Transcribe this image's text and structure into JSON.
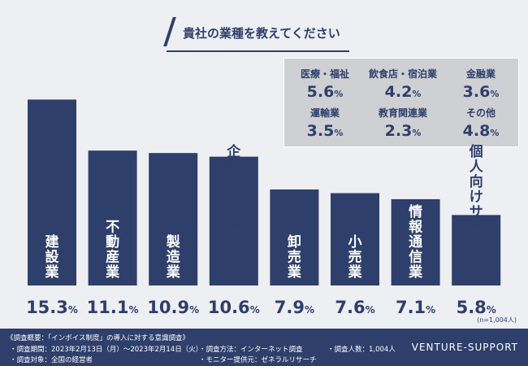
{
  "title": "貴社の業種を教えてください",
  "chart_data": {
    "type": "bar",
    "categories": [
      "建設業",
      "不動産業",
      "製造業",
      "企業向けサービス業",
      "卸売業",
      "小売業",
      "情報通信業",
      "個人向けサービス業"
    ],
    "values": [
      15.3,
      11.1,
      10.9,
      10.6,
      7.9,
      7.6,
      7.1,
      5.8
    ],
    "unit": "%",
    "ylim": [
      0,
      16.8
    ],
    "bar_color": "#2e3f6b",
    "label_color": "#ffffff",
    "outside_label_color": "#2e3f6b",
    "note": "(n=1,004人)"
  },
  "others": [
    {
      "label": "医療・福祉",
      "value": "5.6",
      "unit": "%"
    },
    {
      "label": "飲食店・宿泊業",
      "value": "4.2",
      "unit": "%"
    },
    {
      "label": "金融業",
      "value": "3.6",
      "unit": "%"
    },
    {
      "label": "運輸業",
      "value": "3.5",
      "unit": "%"
    },
    {
      "label": "教育関連業",
      "value": "2.3",
      "unit": "%"
    },
    {
      "label": "その他",
      "value": "4.8",
      "unit": "%"
    }
  ],
  "footer": {
    "heading": "《調査概要：「インボイス制度」の導入に対する意識調査》",
    "period": "・調査期間：2023年2月13日（月）〜2023年2月14日（火）",
    "target": "・調査対象：全国の経営者",
    "method": "・調査方法：インターネット調査",
    "provider": "・モニター提供元：ゼネラルリサーチ",
    "count": "・調査人数：1,004人",
    "brand": "VENTURE-SUPPORT"
  },
  "colors": {
    "primary": "#2e3f6b",
    "background": "#eeeff3",
    "box": "#cfd0d3"
  }
}
